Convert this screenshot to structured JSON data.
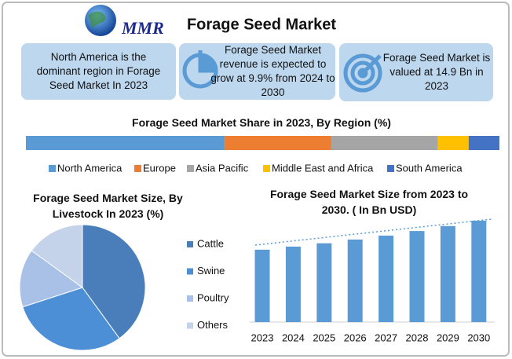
{
  "header": {
    "logo": "MMR",
    "title": "Forage Seed Market"
  },
  "info_boxes": [
    {
      "text": "North America is the dominant region in Forage Seed Market In 2023"
    },
    {
      "text": "Forage Seed Market revenue is expected to grow at 9.9% from 2024 to 2030"
    },
    {
      "text": "Forage Seed Market is valued at 14.9 Bn in 2023"
    }
  ],
  "chart_data": [
    {
      "type": "stacked_bar",
      "title": "Forage Seed Market Share in 2023, By Region (%)",
      "xlim": [
        0,
        100
      ],
      "series": [
        {
          "name": "North America",
          "color": "#5b9bd5",
          "values": [
            42
          ]
        },
        {
          "name": "Europe",
          "color": "#ed7d31",
          "values": [
            22.5
          ]
        },
        {
          "name": "Asia Pacific",
          "color": "#a5a5a5",
          "values": [
            22.5
          ]
        },
        {
          "name": "Middle East and Africa",
          "color": "#ffc000",
          "values": [
            6.5
          ]
        },
        {
          "name": "South America",
          "color": "#4472c4",
          "values": [
            6.5
          ]
        }
      ]
    },
    {
      "type": "pie",
      "title": "Forage Seed Market Size, By Livestock In 2023 (%)",
      "categories": [
        "Cattle",
        "Swine",
        "Poultry",
        "Others"
      ],
      "values": [
        40,
        30,
        15,
        15
      ],
      "colors": [
        "#4a7ebb",
        "#4d8fd6",
        "#a9c1e6",
        "#c5d3ea"
      ]
    },
    {
      "type": "bar",
      "title": "Forage Seed Market Size from 2023 to 2030. ( In Bn USD)",
      "categories": [
        "2023",
        "2024",
        "2025",
        "2026",
        "2027",
        "2028",
        "2029",
        "2030"
      ],
      "values": [
        14.9,
        16.4,
        18.0,
        19.8,
        21.7,
        23.9,
        26.3,
        28.9
      ],
      "color": "#5b9bd5",
      "ylim": [
        -20,
        30
      ]
    }
  ]
}
